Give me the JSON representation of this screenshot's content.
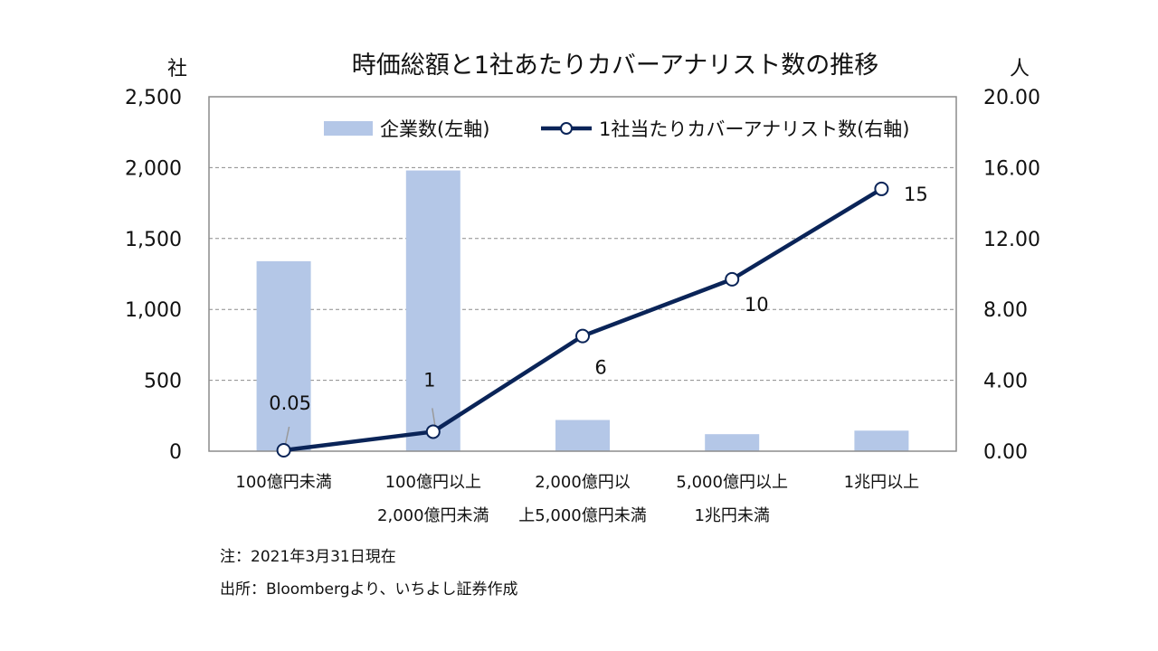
{
  "chart_data": {
    "type": "bar",
    "title": "時価総額と1社あたりカバーアナリスト数の推移",
    "y_left_unit": "社",
    "y_right_unit": "人",
    "y_left_lim": [
      0,
      2500
    ],
    "y_left_ticks": [
      "0",
      "500",
      "1,000",
      "1,500",
      "2,000",
      "2,500"
    ],
    "y_right_lim": [
      0,
      20
    ],
    "y_right_ticks": [
      "0.00",
      "4.00",
      "8.00",
      "12.00",
      "16.00",
      "20.00"
    ],
    "grid": true,
    "legend_position": "top",
    "categories": [
      [
        "100億円未満"
      ],
      [
        "100億円以上",
        "2,000億円未満"
      ],
      [
        "2,000億円以",
        "上5,000億円未満"
      ],
      [
        "5,000億円以上",
        "1兆円未満"
      ],
      [
        "1兆円以上"
      ]
    ],
    "series": [
      {
        "name": "企業数(左軸)",
        "type": "bar",
        "axis": "left",
        "color": "#b4c7e7",
        "values": [
          1340,
          1980,
          220,
          120,
          145
        ]
      },
      {
        "name": "1社当たりカバーアナリスト数(右軸)",
        "type": "line",
        "axis": "right",
        "color": "#0a2458",
        "values": [
          0.05,
          1.1,
          6.5,
          9.7,
          14.8
        ],
        "data_labels": [
          "0.05",
          "1",
          "6",
          "10",
          "15"
        ]
      }
    ]
  },
  "notes": {
    "note": "注：2021年3月31日現在",
    "source": "出所：Bloombergより、いちよし証券作成"
  }
}
